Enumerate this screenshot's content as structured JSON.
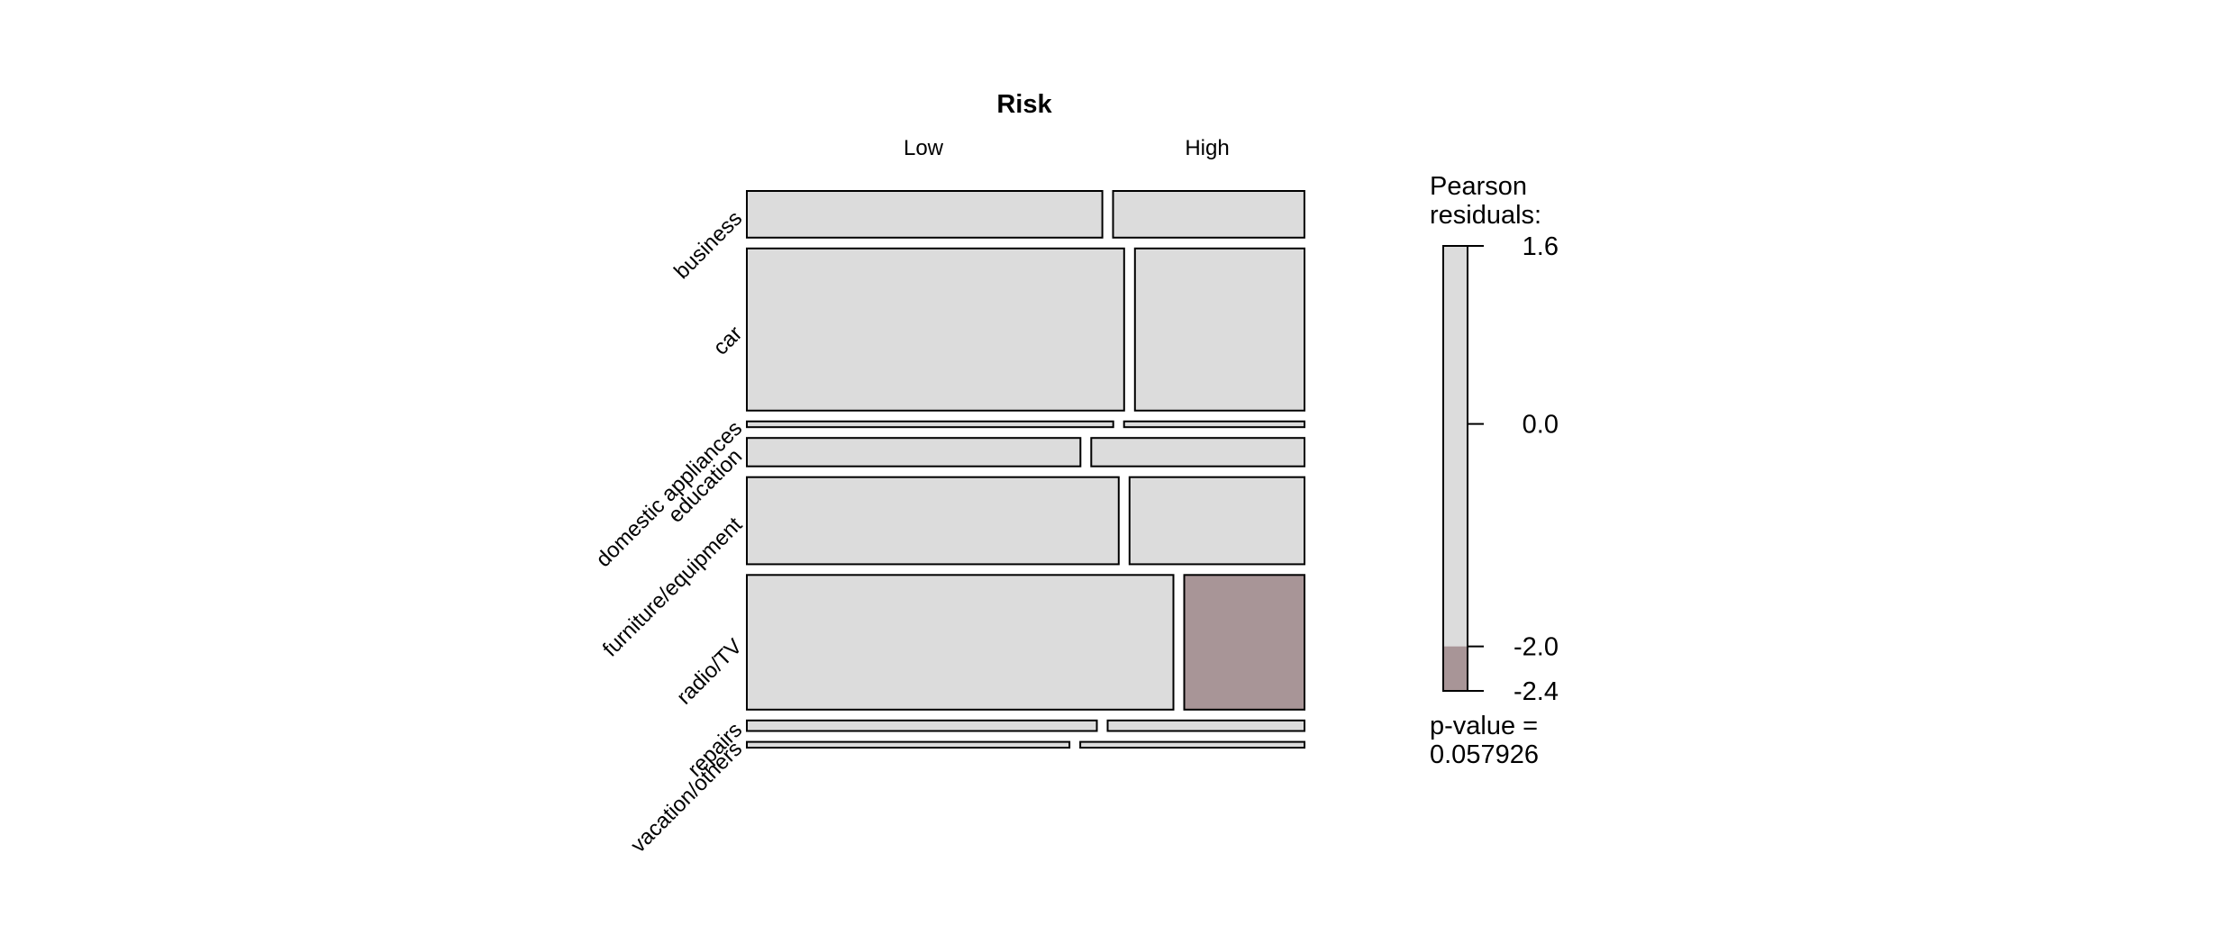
{
  "chart_data": {
    "type": "mosaic",
    "title": "Risk",
    "column_variable": "Risk",
    "row_variable": "",
    "columns": [
      "Low",
      "High"
    ],
    "rows": [
      "business",
      "car",
      "domestic appliances",
      "education",
      "furniture/equipment",
      "radio/TV",
      "repairs",
      "vacation/others"
    ],
    "row_proportions": [
      0.097,
      0.337,
      0.012,
      0.059,
      0.181,
      0.28,
      0.022,
      0.012
    ],
    "low_share_within_row": [
      0.65,
      0.69,
      0.67,
      0.61,
      0.68,
      0.78,
      0.64,
      0.59
    ],
    "cell_residual_sign": [
      [
        "neutral",
        "neutral"
      ],
      [
        "neutral",
        "neutral"
      ],
      [
        "neutral",
        "neutral"
      ],
      [
        "neutral",
        "neutral"
      ],
      [
        "neutral",
        "neutral"
      ],
      [
        "neutral",
        "negative"
      ],
      [
        "neutral",
        "neutral"
      ],
      [
        "neutral",
        "neutral"
      ]
    ],
    "legend": {
      "title_line1": "Pearson",
      "title_line2": "residuals:",
      "max": 1.6,
      "min": -2.4,
      "ticks": [
        "1.6",
        "0.0",
        "-2.0",
        "-2.4"
      ],
      "tick_values": [
        1.6,
        0.0,
        -2.0,
        -2.4
      ],
      "shaded_threshold": -2.0,
      "placement": "right"
    },
    "p_value_label": "p-value =",
    "p_value": "0.057926",
    "colors": {
      "neutral": "#dcdcdc",
      "negative": "#a89597",
      "border": "#000000"
    }
  }
}
